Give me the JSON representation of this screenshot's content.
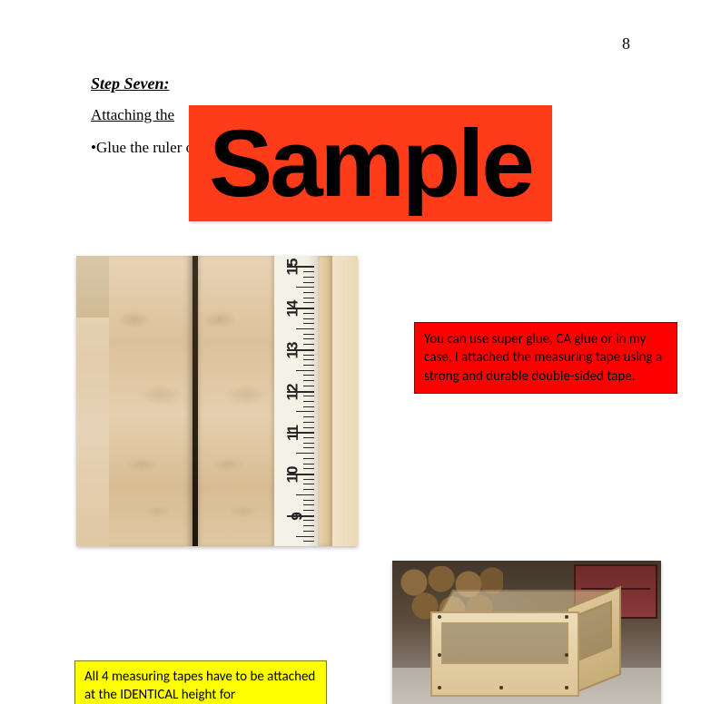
{
  "page_number": "8",
  "step_title": "Step Seven:",
  "subhead": "Attaching the",
  "body_text": "•Glue the ruler o                                                                                                     I started from the ground                                                                                                       re the same on all 4.",
  "watermark": "Sample",
  "red_box": "You can use super glue, CA glue or in my case, I attached the measuring tape using a strong and durable double-sided tape.",
  "yellow_box": "All 4 measuring tapes have to be attached at the IDENTICAL height for",
  "photo1": {
    "desc": "wood-boards-with-tape",
    "tape_numbers": [
      "15",
      "14",
      "13",
      "12",
      "11",
      "10",
      "9"
    ],
    "num_minor_ticks_per_inch": 7,
    "colors": {
      "wood_light": "#e8d3b5",
      "wood_dark": "#d8bd93",
      "tape_bg": "#f4f1e6",
      "tick": "#2b2b2b"
    }
  },
  "photo2": {
    "desc": "plywood-box-in-workshop",
    "colors": {
      "plywood": "#ecdcb9",
      "plywood_edge": "#b79b68",
      "log": "#8a6a3e",
      "shelf": "#8a3a3a"
    }
  },
  "colors": {
    "watermark_bg": "#ff3c19",
    "red_box_bg": "#ff0000",
    "red_box_border": "#7a0000",
    "yellow_box_bg": "#ffff00",
    "yellow_box_border": "#7a7a00",
    "text": "#000000",
    "page_bg": "#ffffff"
  },
  "fonts": {
    "body": "Times New Roman",
    "boxes": "Calibri",
    "watermark": "Arial"
  }
}
